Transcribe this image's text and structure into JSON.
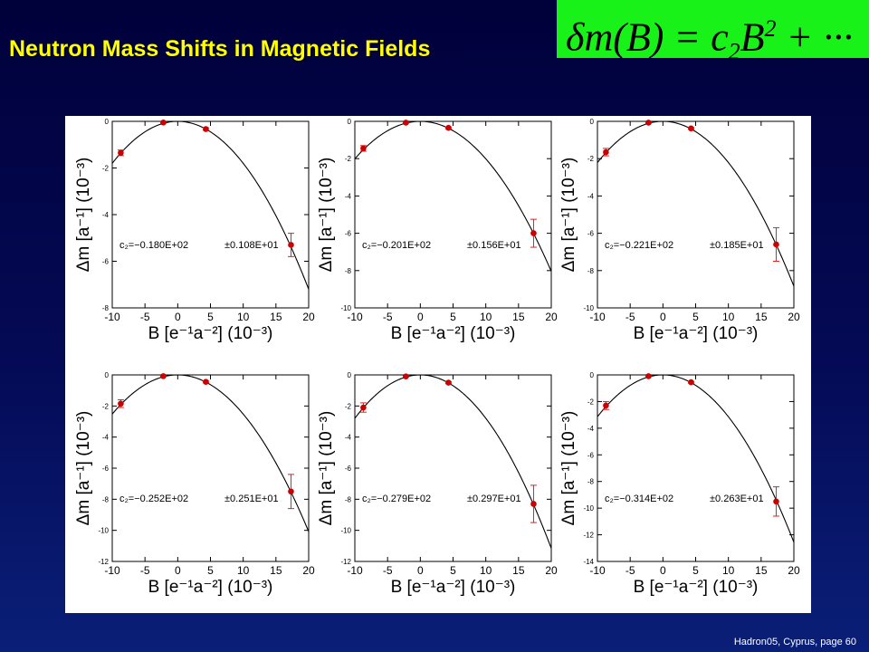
{
  "slide": {
    "title": "Neutron Mass Shifts in Magnetic Fields",
    "formula": {
      "lhs": "δm(B) = c",
      "sub": "2",
      "mid": "B",
      "sup": "2",
      "tail": " + ···"
    },
    "footer": "Hadron05, Cyprus, page 60"
  },
  "chart_data": [
    {
      "type": "scatter",
      "xlabel": "B [e⁻¹a⁻²] (10⁻³)",
      "ylabel": "Δm [a⁻¹] (10⁻³)",
      "xlim": [
        -10,
        20
      ],
      "ylim": [
        -8,
        0
      ],
      "xticks": [
        -10,
        -5,
        0,
        5,
        10,
        15,
        20
      ],
      "yticks": [
        0,
        -2,
        -4,
        -6,
        -8
      ],
      "annotation": {
        "c2": "c₂=−0.180E+02",
        "err": "±0.108E+01"
      },
      "c2": -18.0,
      "points": [
        {
          "x": -8.7,
          "y": -1.35,
          "err": 0.12
        },
        {
          "x": -2.2,
          "y": -0.05,
          "err": 0.03
        },
        {
          "x": 4.3,
          "y": -0.33,
          "err": 0.05
        },
        {
          "x": 17.3,
          "y": -5.3,
          "err": 0.5
        }
      ]
    },
    {
      "type": "scatter",
      "xlabel": "B [e⁻¹a⁻²] (10⁻³)",
      "ylabel": "Δm [a⁻¹] (10⁻³)",
      "xlim": [
        -10,
        20
      ],
      "ylim": [
        -10,
        0
      ],
      "xticks": [
        -10,
        -5,
        0,
        5,
        10,
        15,
        20
      ],
      "yticks": [
        0,
        -2,
        -4,
        -6,
        -8,
        -10
      ],
      "annotation": {
        "c2": "c₂=−0.201E+02",
        "err": "±0.156E+01"
      },
      "c2": -20.1,
      "points": [
        {
          "x": -8.7,
          "y": -1.45,
          "err": 0.15
        },
        {
          "x": -2.2,
          "y": -0.07,
          "err": 0.03
        },
        {
          "x": 4.3,
          "y": -0.35,
          "err": 0.05
        },
        {
          "x": 17.3,
          "y": -6.0,
          "err": 0.75
        }
      ]
    },
    {
      "type": "scatter",
      "xlabel": "B [e⁻¹a⁻²] (10⁻³)",
      "ylabel": "Δm [a⁻¹] (10⁻³)",
      "xlim": [
        -10,
        20
      ],
      "ylim": [
        -10,
        0
      ],
      "xticks": [
        -10,
        -5,
        0,
        5,
        10,
        15,
        20
      ],
      "yticks": [
        0,
        -2,
        -4,
        -6,
        -8,
        -10
      ],
      "annotation": {
        "c2": "c₂=−0.221E+02",
        "err": "±0.185E+01"
      },
      "c2": -22.1,
      "points": [
        {
          "x": -8.7,
          "y": -1.65,
          "err": 0.2
        },
        {
          "x": -2.2,
          "y": -0.07,
          "err": 0.03
        },
        {
          "x": 4.3,
          "y": -0.38,
          "err": 0.05
        },
        {
          "x": 17.3,
          "y": -6.6,
          "err": 0.9
        }
      ]
    },
    {
      "type": "scatter",
      "xlabel": "B [e⁻¹a⁻²] (10⁻³)",
      "ylabel": "Δm [a⁻¹] (10⁻³)",
      "xlim": [
        -10,
        20
      ],
      "ylim": [
        -12,
        0
      ],
      "xticks": [
        -10,
        -5,
        0,
        5,
        10,
        15,
        20
      ],
      "yticks": [
        0,
        -2,
        -4,
        -6,
        -8,
        -10,
        -12
      ],
      "annotation": {
        "c2": "c₂=−0.252E+02",
        "err": "±0.251E+01"
      },
      "c2": -25.2,
      "points": [
        {
          "x": -8.7,
          "y": -1.85,
          "err": 0.25
        },
        {
          "x": -2.2,
          "y": -0.08,
          "err": 0.03
        },
        {
          "x": 4.3,
          "y": -0.45,
          "err": 0.06
        },
        {
          "x": 17.3,
          "y": -7.5,
          "err": 1.1
        }
      ]
    },
    {
      "type": "scatter",
      "xlabel": "B [e⁻¹a⁻²] (10⁻³)",
      "ylabel": "Δm [a⁻¹] (10⁻³)",
      "xlim": [
        -10,
        20
      ],
      "ylim": [
        -12,
        0
      ],
      "xticks": [
        -10,
        -5,
        0,
        5,
        10,
        15,
        20
      ],
      "yticks": [
        0,
        -2,
        -4,
        -6,
        -8,
        -10,
        -12
      ],
      "annotation": {
        "c2": "c₂=−0.279E+02",
        "err": "±0.297E+01"
      },
      "c2": -27.9,
      "points": [
        {
          "x": -8.7,
          "y": -2.1,
          "err": 0.3
        },
        {
          "x": -2.2,
          "y": -0.1,
          "err": 0.03
        },
        {
          "x": 4.3,
          "y": -0.5,
          "err": 0.06
        },
        {
          "x": 17.3,
          "y": -8.3,
          "err": 1.2
        }
      ]
    },
    {
      "type": "scatter",
      "xlabel": "B [e⁻¹a⁻²] (10⁻³)",
      "ylabel": "Δm [a⁻¹] (10⁻³)",
      "xlim": [
        -10,
        20
      ],
      "ylim": [
        -14,
        0
      ],
      "xticks": [
        -10,
        -5,
        0,
        5,
        10,
        15,
        20
      ],
      "yticks": [
        0,
        -2,
        -4,
        -6,
        -8,
        -10,
        -12,
        -14
      ],
      "annotation": {
        "c2": "c₂=−0.314E+02",
        "err": "±0.263E+01"
      },
      "c2": -31.4,
      "points": [
        {
          "x": -8.7,
          "y": -2.3,
          "err": 0.3
        },
        {
          "x": -2.2,
          "y": -0.1,
          "err": 0.03
        },
        {
          "x": 4.3,
          "y": -0.55,
          "err": 0.07
        },
        {
          "x": 17.3,
          "y": -9.5,
          "err": 1.1
        }
      ]
    }
  ]
}
